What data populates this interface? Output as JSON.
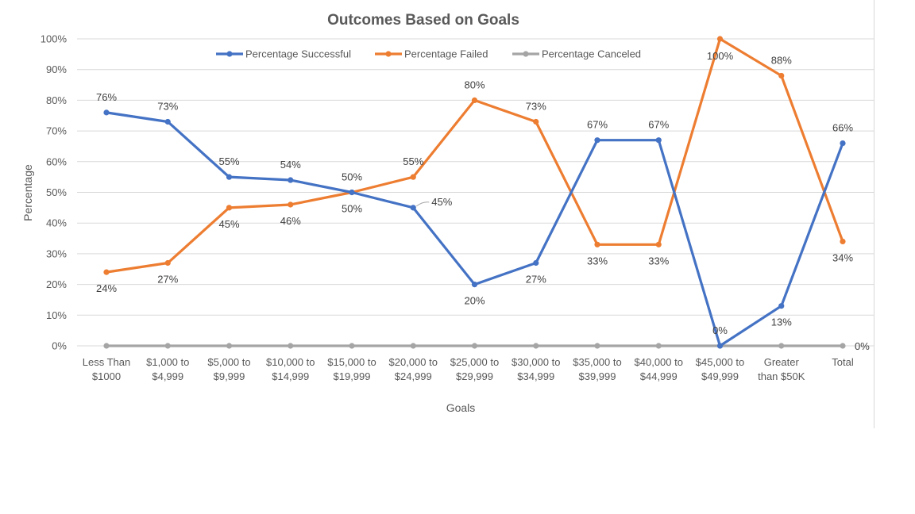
{
  "chart_data": {
    "type": "line",
    "title": "Outcomes Based on Goals",
    "xlabel": "Goals",
    "ylabel": "Percentage",
    "ylim": [
      0,
      100
    ],
    "yticks": [
      "0%",
      "10%",
      "20%",
      "30%",
      "40%",
      "50%",
      "60%",
      "70%",
      "80%",
      "90%",
      "100%"
    ],
    "categories": [
      [
        "Less Than",
        "$1000"
      ],
      [
        "$1,000 to",
        "$4,999"
      ],
      [
        "$5,000 to",
        "$9,999"
      ],
      [
        "$10,000 to",
        "$14,999"
      ],
      [
        "$15,000 to",
        "$19,999"
      ],
      [
        "$20,000 to",
        "$24,999"
      ],
      [
        "$25,000 to",
        "$29,999"
      ],
      [
        "$30,000 to",
        "$34,999"
      ],
      [
        "$35,000 to",
        "$39,999"
      ],
      [
        "$40,000 to",
        "$44,999"
      ],
      [
        "$45,000 to",
        "$49,999"
      ],
      [
        "Greater",
        "than $50K"
      ],
      [
        "Total"
      ]
    ],
    "legend_position": "top",
    "grid": true,
    "series": [
      {
        "name": "Percentage Successful",
        "color": "#4472c4",
        "values": [
          76,
          73,
          55,
          54,
          50,
          45,
          20,
          27,
          67,
          67,
          0,
          13,
          66
        ],
        "labels": [
          "76%",
          "73%",
          "55%",
          "54%",
          "50%",
          "45%",
          "20%",
          "27%",
          "67%",
          "67%",
          "0%",
          "13%",
          "66%"
        ]
      },
      {
        "name": "Percentage Failed",
        "color": "#ed7d31",
        "values": [
          24,
          27,
          45,
          46,
          50,
          55,
          80,
          73,
          33,
          33,
          100,
          88,
          34
        ],
        "labels": [
          "24%",
          "27%",
          "45%",
          "46%",
          "50%",
          "55%",
          "80%",
          "73%",
          "33%",
          "33%",
          "100%",
          "88%",
          "34%"
        ]
      },
      {
        "name": "Percentage Canceled",
        "color": "#a5a5a5",
        "values": [
          0,
          0,
          0,
          0,
          0,
          0,
          0,
          0,
          0,
          0,
          0,
          0,
          0
        ],
        "labels": [
          "",
          "",
          "",
          "",
          "",
          "",
          "",
          "",
          "",
          "",
          "",
          "",
          "0%"
        ]
      }
    ]
  }
}
